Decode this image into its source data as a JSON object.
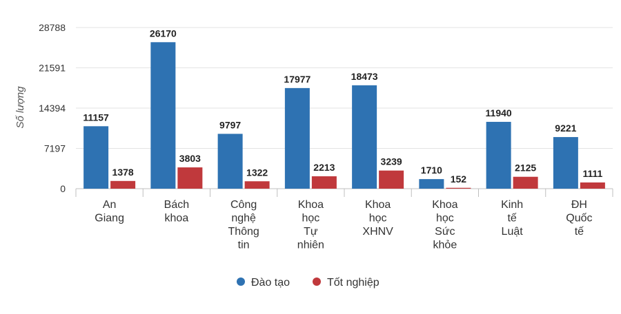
{
  "chart_data": {
    "type": "bar",
    "ylabel": "Số lượng",
    "xlabel": "",
    "title": "",
    "ylim": [
      0,
      28788
    ],
    "yticks": [
      0,
      7197,
      14394,
      21591,
      28788
    ],
    "grid": true,
    "legend_position": "bottom",
    "categories": [
      [
        "An",
        "Giang"
      ],
      [
        "Bách",
        "khoa"
      ],
      [
        "Công",
        "nghệ",
        "Thông",
        "tin"
      ],
      [
        "Khoa",
        "học",
        "Tự",
        "nhiên"
      ],
      [
        "Khoa",
        "học",
        "XHNV"
      ],
      [
        "Khoa",
        "học",
        "Sức",
        "khỏe"
      ],
      [
        "Kinh",
        "tế",
        "Luật"
      ],
      [
        "ĐH",
        "Quốc",
        "tế"
      ]
    ],
    "series": [
      {
        "name": "Đào tạo",
        "color": "#2e72b2",
        "values": [
          11157,
          26170,
          9797,
          17977,
          18473,
          1710,
          11940,
          9221
        ]
      },
      {
        "name": "Tốt nghiệp",
        "color": "#c0393c",
        "values": [
          1378,
          3803,
          1322,
          2213,
          3239,
          152,
          2125,
          1111
        ]
      }
    ]
  }
}
